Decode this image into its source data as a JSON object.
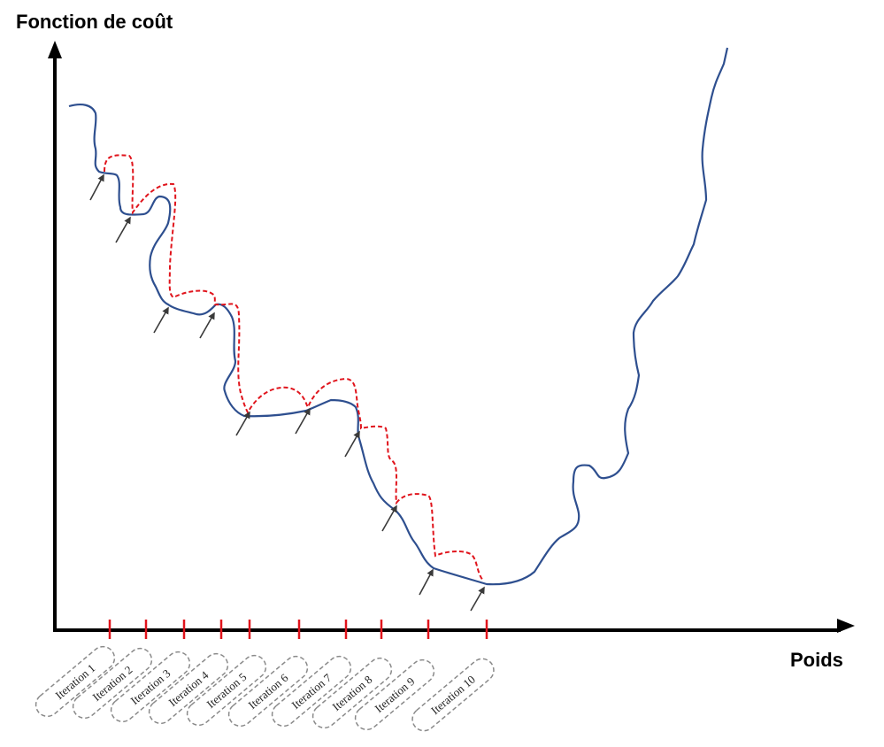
{
  "axes": {
    "y_label": "Fonction de coût",
    "x_label": "Poids"
  },
  "colors": {
    "axis": "#000000",
    "cost_curve": "#2e4f8f",
    "step_path": "#e0141c",
    "tick": "#e0141c",
    "arrow": "#3a3a3a",
    "pill_border": "#8a8a8a"
  },
  "iterations": [
    {
      "label": "Iteration 1"
    },
    {
      "label": "Iteration 2"
    },
    {
      "label": "Iteration 3"
    },
    {
      "label": "Iteration 4"
    },
    {
      "label": "Iteration 5"
    },
    {
      "label": "Iteration 6"
    },
    {
      "label": "Iteration 7"
    },
    {
      "label": "Iteration 8"
    },
    {
      "label": "Iteration 9"
    },
    {
      "label": "Iteration 10"
    }
  ]
}
